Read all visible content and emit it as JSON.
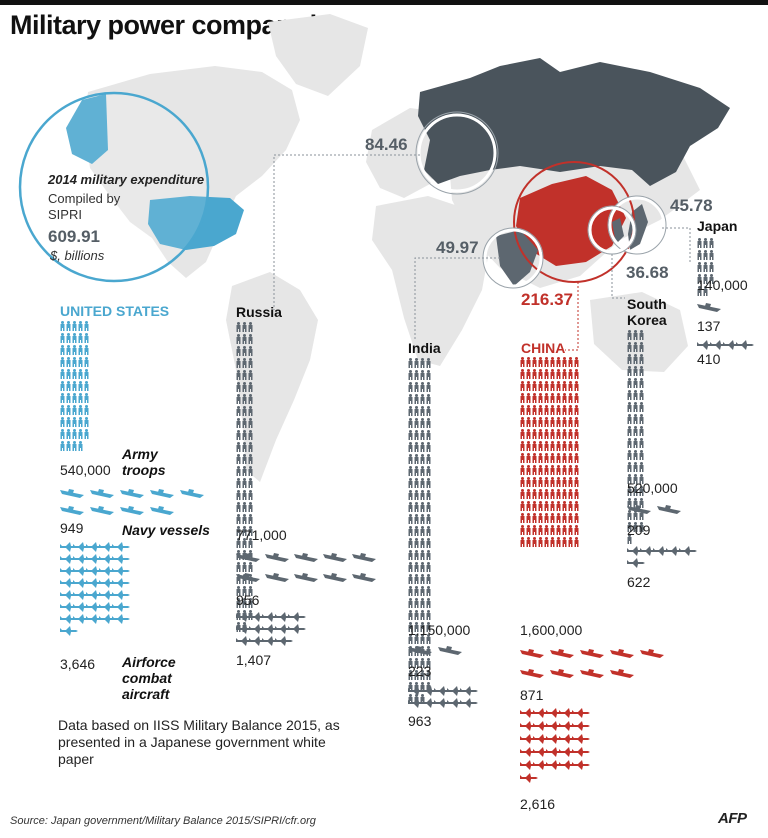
{
  "title": "Military power compared",
  "expenditure_box": {
    "heading": "2014 military expenditure",
    "compiled_by_1": "Compiled by",
    "compiled_by_2": "SIPRI",
    "us_value": "609.91",
    "unit": "$, billions"
  },
  "labels": {
    "army": "Army troops",
    "army_1": "Army",
    "army_2": "troops",
    "navy": "Navy vessels",
    "air_1": "Airforce",
    "air_2": "combat",
    "air_3": "aircraft"
  },
  "note": "Data based on IISS Military Balance 2015, as presented in a Japanese government white paper",
  "source": "Source: Japan government/Military Balance 2015/SIPRI/cfr.org",
  "credit": "AFP",
  "colors": {
    "usa": "#4aa7cf",
    "china": "#c1312a",
    "grey": "#5d6770",
    "map": "#e6e6e6",
    "map_russia": "#4a545c"
  },
  "chart_data": {
    "type": "table",
    "title": "Military power compared",
    "subtitle": "2014 military expenditure",
    "units": {
      "expenditure": "$, billions"
    },
    "series": [
      "Military expenditure",
      "Army troops",
      "Navy vessels",
      "Airforce combat aircraft"
    ],
    "countries": [
      {
        "name": "UNITED STATES",
        "expenditure": 609.91,
        "expenditure_label": "609.91",
        "army": 540000,
        "army_label": "540,000",
        "navy": 949,
        "navy_label": "949",
        "air": 3646,
        "air_label": "3,646"
      },
      {
        "name": "Russia",
        "expenditure": 84.46,
        "expenditure_label": "84.46",
        "army": 771000,
        "army_label": "771,000",
        "navy": 956,
        "navy_label": "956",
        "air": 1407,
        "air_label": "1,407"
      },
      {
        "name": "India",
        "expenditure": 49.97,
        "expenditure_label": "49.97",
        "army": 1150000,
        "army_label": "1,150,000",
        "navy": 223,
        "navy_label": "223",
        "air": 963,
        "air_label": "963"
      },
      {
        "name": "CHINA",
        "expenditure": 216.37,
        "expenditure_label": "216.37",
        "army": 1600000,
        "army_label": "1,600,000",
        "navy": 871,
        "navy_label": "871",
        "air": 2616,
        "air_label": "2,616"
      },
      {
        "name_1": "South",
        "name_2": "Korea",
        "expenditure": 36.68,
        "expenditure_label": "36.68",
        "army": 520000,
        "army_label": "520,000",
        "navy": 209,
        "navy_label": "209",
        "air": 622,
        "air_label": "622"
      },
      {
        "name": "Japan",
        "expenditure": 45.78,
        "expenditure_label": "45.78",
        "army": 140000,
        "army_label": "140,000",
        "navy": 137,
        "navy_label": "137",
        "air": 410,
        "air_label": "410"
      }
    ]
  }
}
